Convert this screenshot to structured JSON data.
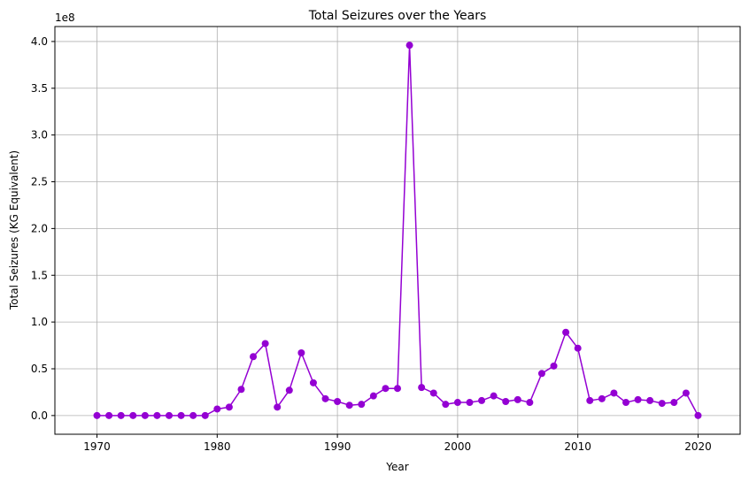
{
  "chart_data": {
    "type": "line",
    "title": "Total Seizures over the Years",
    "xlabel": "Year",
    "ylabel": "Total Seizures (KG Equivalent)",
    "y_offset_label": "1e8",
    "xlim": [
      1966.5,
      2023.5
    ],
    "ylim": [
      -0.2,
      4.16
    ],
    "x_ticks": [
      1970,
      1980,
      1990,
      2000,
      2010,
      2020
    ],
    "x_tick_labels": [
      "1970",
      "1980",
      "1990",
      "2000",
      "2010",
      "2020"
    ],
    "y_ticks": [
      0,
      0.5,
      1.0,
      1.5,
      2.0,
      2.5,
      3.0,
      3.5,
      4.0
    ],
    "y_tick_labels": [
      "0.0",
      "0.5",
      "1.0",
      "1.5",
      "2.0",
      "2.5",
      "3.0",
      "3.5",
      "4.0"
    ],
    "y_unit_multiplier": 100000000,
    "grid": true,
    "series": [
      {
        "color": "#9400d3",
        "x": [
          1970,
          1971,
          1972,
          1973,
          1974,
          1975,
          1976,
          1977,
          1978,
          1979,
          1980,
          1981,
          1982,
          1983,
          1984,
          1985,
          1986,
          1987,
          1988,
          1989,
          1990,
          1991,
          1992,
          1993,
          1994,
          1995,
          1996,
          1997,
          1998,
          1999,
          2000,
          2001,
          2002,
          2003,
          2004,
          2005,
          2006,
          2007,
          2008,
          2009,
          2010,
          2011,
          2012,
          2013,
          2014,
          2015,
          2016,
          2017,
          2018,
          2019,
          2020
        ],
        "values": [
          0.0,
          0.0,
          0.0,
          0.0,
          0.0,
          0.0,
          0.0,
          0.0,
          0.0,
          0.0,
          0.07,
          0.09,
          0.28,
          0.63,
          0.77,
          0.09,
          0.27,
          0.67,
          0.35,
          0.18,
          0.15,
          0.11,
          0.12,
          0.21,
          0.29,
          0.29,
          3.96,
          0.3,
          0.24,
          0.12,
          0.14,
          0.14,
          0.16,
          0.21,
          0.15,
          0.17,
          0.14,
          0.45,
          0.53,
          0.89,
          0.72,
          0.16,
          0.18,
          0.24,
          0.14,
          0.17,
          0.16,
          0.13,
          0.14,
          0.24,
          0.0
        ]
      }
    ]
  }
}
